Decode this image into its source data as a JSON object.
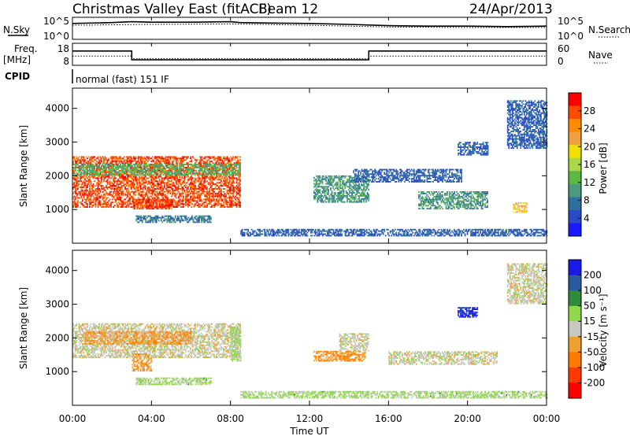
{
  "header": {
    "title": "Christmas Valley East (fitACF)",
    "beam": "Beam 12",
    "date": "24/Apr/2013"
  },
  "strip_labels": {
    "nsky": "N.Sky",
    "nsearch": "N.Search",
    "freq_line1": "Freq.",
    "freq_line2": "[MHz]",
    "nave": "Nave",
    "cpid": "CPID",
    "cpid_value": "normal (fast) 151 IF",
    "noise_ticks_left": [
      "10^5",
      "10^0"
    ],
    "noise_ticks_right": [
      "10^5",
      "10^0"
    ],
    "freq_ticks_left": [
      "18",
      "8"
    ],
    "nave_ticks_right": [
      "60",
      "0"
    ]
  },
  "axes": {
    "ylabel": "Slant Range [km]",
    "xlabel": "Time UT",
    "range_ticks": [
      "4000",
      "3000",
      "2000",
      "1000"
    ],
    "time_ticks": [
      "00:00",
      "04:00",
      "08:00",
      "12:00",
      "16:00",
      "20:00",
      "00:00"
    ]
  },
  "power_colorbar": {
    "label": "Power [dB]",
    "ticks": [
      "28",
      "24",
      "20",
      "16",
      "12",
      "8",
      "4"
    ],
    "colors": [
      "#ff0000",
      "#ff4a00",
      "#ff8c00",
      "#f0a040",
      "#f2e000",
      "#a8d848",
      "#5ab843",
      "#4a9a80",
      "#2f6f9e",
      "#2a4ac8",
      "#1a1aff"
    ]
  },
  "velocity_colorbar": {
    "label": "Velocity [m s⁻¹]",
    "ticks": [
      "200",
      "100",
      "50",
      "15",
      "-15",
      "-50",
      "-100",
      "-200"
    ],
    "colors": [
      "#1a1ae6",
      "#2a5aa0",
      "#2f8a3a",
      "#8fd84a",
      "#c8c8c0",
      "#f0a030",
      "#ff7a00",
      "#ff3a00",
      "#ff0000"
    ]
  },
  "chart_data": [
    {
      "type": "line",
      "title": "N.Sky / N.Search",
      "x_range_hours": [
        0,
        24
      ],
      "ylim_log10": [
        0,
        5
      ],
      "series": [
        {
          "name": "N.Sky",
          "x": [
            0,
            2,
            3,
            4,
            6,
            8,
            8.5,
            10,
            12,
            14,
            16,
            18,
            20,
            22,
            24
          ],
          "y_log10": [
            3.6,
            3.8,
            4.0,
            3.9,
            3.9,
            4.0,
            3.8,
            3.7,
            3.6,
            3.4,
            3.1,
            3.0,
            3.0,
            2.9,
            3.0
          ]
        },
        {
          "name": "N.Search",
          "x": [
            0,
            4,
            8,
            12,
            16,
            20,
            24
          ],
          "y_log10": [
            3.2,
            3.4,
            3.5,
            3.2,
            2.8,
            2.7,
            2.7
          ]
        }
      ]
    },
    {
      "type": "line",
      "title": "Freq. / Nave",
      "x_range_hours": [
        0,
        24
      ],
      "series": [
        {
          "name": "Freq.",
          "x": [
            0,
            3,
            3,
            15,
            15,
            24
          ],
          "y": [
            14.5,
            14.5,
            10.5,
            10.5,
            14.5,
            14.5
          ],
          "ylim": [
            8,
            18
          ]
        },
        {
          "name": "Nave",
          "x": [
            0,
            3,
            3,
            15,
            15,
            24
          ],
          "y": [
            25,
            25,
            18,
            18,
            25,
            25
          ],
          "ylim": [
            0,
            60
          ]
        }
      ]
    },
    {
      "type": "heatmap",
      "title": "Power [dB]",
      "x_range_hours": [
        0,
        24
      ],
      "ylim": [
        0,
        4600
      ],
      "clim": [
        0,
        32
      ],
      "regions": [
        {
          "t": [
            0.0,
            8.5
          ],
          "range": [
            1050,
            2550
          ],
          "value": 28
        },
        {
          "t": [
            0.0,
            8.5
          ],
          "range": [
            2000,
            2350
          ],
          "value": 12
        },
        {
          "t": [
            3.0,
            5.0
          ],
          "range": [
            1000,
            1300
          ],
          "value": 28
        },
        {
          "t": [
            3.2,
            7.0
          ],
          "range": [
            600,
            800
          ],
          "value": 8
        },
        {
          "t": [
            8.5,
            24.0
          ],
          "range": [
            200,
            400
          ],
          "value": 6
        },
        {
          "t": [
            12.2,
            15.0
          ],
          "range": [
            1200,
            2000
          ],
          "value": 10
        },
        {
          "t": [
            14.2,
            19.7
          ],
          "range": [
            1800,
            2200
          ],
          "value": 6
        },
        {
          "t": [
            17.5,
            21.0
          ],
          "range": [
            1000,
            1500
          ],
          "value": 10
        },
        {
          "t": [
            22.0,
            24.0
          ],
          "range": [
            2800,
            4200
          ],
          "value": 6
        },
        {
          "t": [
            22.3,
            23.0
          ],
          "range": [
            900,
            1200
          ],
          "value": 20
        },
        {
          "t": [
            19.5,
            21.0
          ],
          "range": [
            2600,
            3000
          ],
          "value": 6
        }
      ]
    },
    {
      "type": "heatmap",
      "title": "Velocity [m s⁻¹]",
      "x_range_hours": [
        0,
        24
      ],
      "ylim": [
        0,
        4600
      ],
      "clim": [
        -250,
        250
      ],
      "regions": [
        {
          "t": [
            0.0,
            8.5
          ],
          "range": [
            1400,
            2400
          ],
          "value": 0
        },
        {
          "t": [
            0.5,
            6.0
          ],
          "range": [
            1800,
            2200
          ],
          "value": -60
        },
        {
          "t": [
            3.0,
            4.0
          ],
          "range": [
            1000,
            1500
          ],
          "value": -60
        },
        {
          "t": [
            8.0,
            8.5
          ],
          "range": [
            1300,
            2300
          ],
          "value": 40
        },
        {
          "t": [
            3.2,
            7.0
          ],
          "range": [
            600,
            800
          ],
          "value": 40
        },
        {
          "t": [
            8.5,
            24.0
          ],
          "range": [
            200,
            400
          ],
          "value": 40
        },
        {
          "t": [
            12.2,
            14.8
          ],
          "range": [
            1300,
            1600
          ],
          "value": -80
        },
        {
          "t": [
            13.5,
            15.0
          ],
          "range": [
            1600,
            2100
          ],
          "value": 0
        },
        {
          "t": [
            16.0,
            21.5
          ],
          "range": [
            1200,
            1600
          ],
          "value": 0
        },
        {
          "t": [
            22.0,
            24.0
          ],
          "range": [
            3000,
            4200
          ],
          "value": 0
        },
        {
          "t": [
            19.5,
            20.5
          ],
          "range": [
            2600,
            2900
          ],
          "value": 210
        }
      ]
    }
  ]
}
